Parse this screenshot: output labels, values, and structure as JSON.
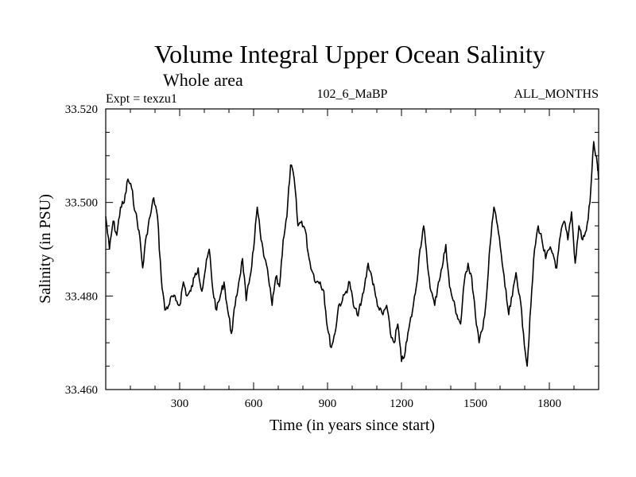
{
  "chart_data": {
    "type": "line",
    "title": "Volume Integral Upper Ocean Salinity",
    "subtitle": "Whole area",
    "labels": {
      "experiment": "Expt = texzu1",
      "run": "102_6_MaBP",
      "period": "ALL_MONTHS"
    },
    "xlabel": "Time (in years since start)",
    "ylabel": "Salinity (in PSU)",
    "xlim": [
      0,
      2000
    ],
    "ylim": [
      33.46,
      33.52
    ],
    "xticks": [
      300,
      600,
      900,
      1200,
      1500,
      1800
    ],
    "xtick_labels": [
      "300",
      "600",
      "900",
      "1200",
      "1500",
      "1800"
    ],
    "yticks": [
      33.46,
      33.48,
      33.5,
      33.52
    ],
    "ytick_labels": [
      "33.460",
      "33.480",
      "33.500",
      "33.520"
    ],
    "grid": false,
    "series": [
      {
        "name": "salinity",
        "x": [
          0,
          15,
          30,
          45,
          60,
          75,
          90,
          105,
          120,
          135,
          150,
          165,
          180,
          195,
          210,
          225,
          240,
          255,
          270,
          285,
          300,
          315,
          330,
          345,
          360,
          375,
          390,
          405,
          420,
          435,
          450,
          465,
          480,
          495,
          510,
          525,
          540,
          555,
          570,
          585,
          600,
          615,
          630,
          645,
          660,
          675,
          690,
          705,
          720,
          735,
          750,
          765,
          780,
          795,
          810,
          825,
          840,
          855,
          870,
          885,
          900,
          915,
          930,
          945,
          960,
          975,
          990,
          1005,
          1020,
          1035,
          1050,
          1065,
          1080,
          1095,
          1110,
          1125,
          1140,
          1155,
          1170,
          1185,
          1200,
          1215,
          1230,
          1245,
          1260,
          1275,
          1290,
          1305,
          1320,
          1335,
          1350,
          1365,
          1380,
          1395,
          1410,
          1425,
          1440,
          1455,
          1470,
          1485,
          1500,
          1515,
          1530,
          1545,
          1560,
          1575,
          1590,
          1605,
          1620,
          1635,
          1650,
          1665,
          1680,
          1695,
          1710,
          1725,
          1740,
          1755,
          1770,
          1785,
          1800,
          1815,
          1830,
          1845,
          1860,
          1875,
          1890,
          1905,
          1920,
          1935,
          1950,
          1965,
          1980,
          1995,
          2000
        ],
        "values": [
          33.497,
          33.49,
          33.496,
          33.493,
          33.499,
          33.5,
          33.505,
          33.503,
          33.498,
          33.494,
          33.486,
          33.493,
          33.497,
          33.501,
          33.497,
          33.484,
          33.477,
          33.478,
          33.48,
          33.479,
          33.478,
          33.483,
          33.48,
          33.481,
          33.484,
          33.486,
          33.481,
          33.486,
          33.49,
          33.481,
          33.477,
          33.48,
          33.483,
          33.477,
          33.472,
          33.478,
          33.483,
          33.488,
          33.479,
          33.484,
          33.49,
          33.499,
          33.492,
          33.488,
          33.484,
          33.478,
          33.484,
          33.482,
          33.492,
          33.497,
          33.508,
          33.505,
          33.495,
          33.496,
          33.494,
          33.488,
          33.485,
          33.483,
          33.483,
          33.481,
          33.473,
          33.469,
          33.472,
          33.478,
          33.479,
          33.481,
          33.483,
          33.478,
          33.476,
          33.478,
          33.482,
          33.487,
          33.484,
          33.48,
          33.477,
          33.476,
          33.478,
          33.472,
          33.47,
          33.474,
          33.466,
          33.468,
          33.473,
          33.477,
          33.482,
          33.49,
          33.495,
          33.487,
          33.481,
          33.478,
          33.483,
          33.486,
          33.491,
          33.482,
          33.479,
          33.476,
          33.474,
          33.483,
          33.487,
          33.484,
          33.476,
          33.47,
          33.473,
          33.48,
          33.491,
          33.499,
          33.495,
          33.489,
          33.482,
          33.476,
          33.48,
          33.485,
          33.48,
          33.472,
          33.465,
          33.478,
          33.49,
          33.495,
          33.492,
          33.488,
          33.49,
          33.489,
          33.486,
          33.493,
          33.496,
          33.492,
          33.498,
          33.487,
          33.495,
          33.492,
          33.494,
          33.5,
          33.513,
          33.508,
          33.505
        ]
      }
    ]
  }
}
